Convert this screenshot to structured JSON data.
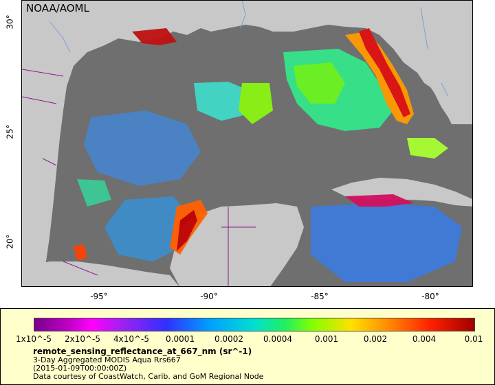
{
  "map": {
    "credit": "NOAA/AOML",
    "x_ticks": [
      "-95°",
      "-90°",
      "-85°",
      "-80°"
    ],
    "y_ticks": [
      "30°",
      "25°",
      "20°"
    ]
  },
  "legend": {
    "colorbar_labels": [
      "1x10^-5",
      "2x10^-5",
      "4x10^-5",
      "0.0001",
      "0.0002",
      "0.0004",
      "0.001",
      "0.002",
      "0.004",
      "0.01"
    ],
    "title": "remote_sensing_reflectance_at_667_nm (sr^-1)",
    "line1": "3-Day Aggregated MODIS Aqua Rrs667",
    "line2": "(2015-01-09T00:00:00Z)",
    "line3": "Data courtesy of CoastWatch, Carib. and GoM Regional Node"
  },
  "colors": {
    "land": "#c8c8c8",
    "no_data": "#6f6f6f",
    "border": "#8a1a8a",
    "river": "#7aa0d8"
  }
}
